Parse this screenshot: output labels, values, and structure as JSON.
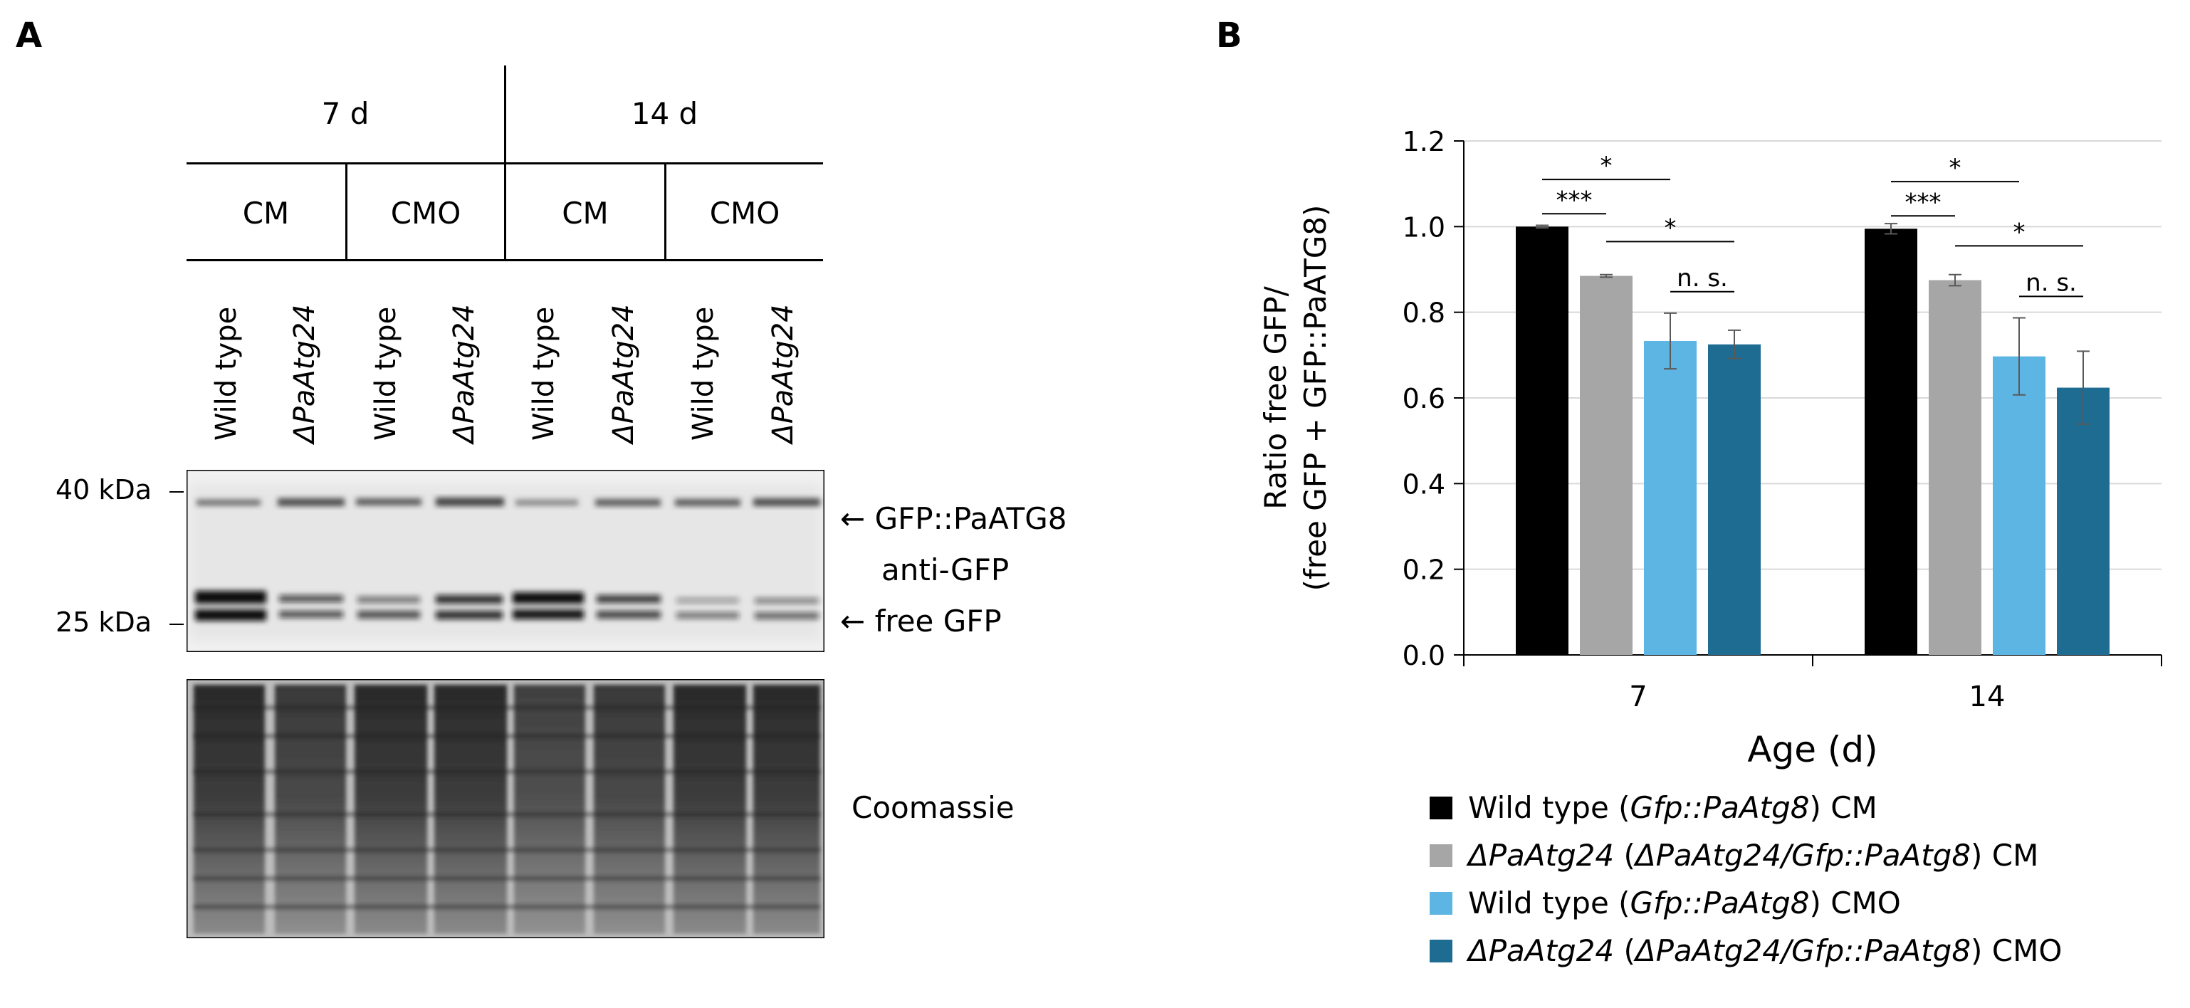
{
  "panel_a": {
    "letter": "A",
    "timepoints": [
      "7 d",
      "14 d"
    ],
    "media": [
      "CM",
      "CMO",
      "CM",
      "CMO"
    ],
    "lanes": [
      {
        "label": "Wild type",
        "italic": false
      },
      {
        "label": "ΔPaAtg24",
        "italic": true
      },
      {
        "label": "Wild type",
        "italic": false
      },
      {
        "label": "ΔPaAtg24",
        "italic": true
      },
      {
        "label": "Wild type",
        "italic": false
      },
      {
        "label": "ΔPaAtg24",
        "italic": true
      },
      {
        "label": "Wild type",
        "italic": false
      },
      {
        "label": "ΔPaAtg24",
        "italic": true
      }
    ],
    "markers": {
      "upper": "40 kDa",
      "lower": "25 kDa"
    },
    "band_labels": {
      "upper": "GFP::PaATG8",
      "antibody": "anti-GFP",
      "lower": "free GFP"
    },
    "arrow": "←",
    "loading_control": "Coomassie"
  },
  "panel_b": {
    "letter": "B",
    "legend": [
      {
        "color": "#000000",
        "parts": [
          {
            "t": "Wild type (",
            "i": false
          },
          {
            "t": "Gfp::PaAtg8",
            "i": true
          },
          {
            "t": ") CM",
            "i": false
          }
        ]
      },
      {
        "color": "#a6a6a6",
        "parts": [
          {
            "t": "ΔPaAtg24",
            "i": true
          },
          {
            "t": " (",
            "i": false
          },
          {
            "t": "ΔPaAtg24/Gfp::PaAtg8",
            "i": true
          },
          {
            "t": ") CM",
            "i": false
          }
        ]
      },
      {
        "color": "#5db5e3",
        "parts": [
          {
            "t": "Wild type (",
            "i": false
          },
          {
            "t": "Gfp::PaAtg8",
            "i": true
          },
          {
            "t": ") CMO",
            "i": false
          }
        ]
      },
      {
        "color": "#1f6c93",
        "parts": [
          {
            "t": "ΔPaAtg24",
            "i": true
          },
          {
            "t": " (",
            "i": false
          },
          {
            "t": "ΔPaAtg24/Gfp::PaAtg8",
            "i": true
          },
          {
            "t": ") CMO",
            "i": false
          }
        ]
      }
    ]
  },
  "chart_data": {
    "type": "bar",
    "categories": [
      "7",
      "14"
    ],
    "xlabel": "Age (d)",
    "ylabel_lines": [
      "Ratio free GFP/",
      "(free GFP + GFP::PaATG8)"
    ],
    "ylim": [
      0,
      1.2
    ],
    "yticks": [
      "0.0",
      "0.2",
      "0.4",
      "0.6",
      "0.8",
      "1.0",
      "1.2"
    ],
    "grid": true,
    "legend_position": "bottom",
    "series": [
      {
        "values": [
          1.0,
          0.995
        ],
        "errors": [
          0.003,
          0.012
        ],
        "color": "#000000"
      },
      {
        "values": [
          0.885,
          0.875
        ],
        "errors": [
          0.003,
          0.013
        ],
        "color": "#a6a6a6"
      },
      {
        "values": [
          0.733,
          0.697
        ],
        "errors": [
          0.065,
          0.09
        ],
        "color": "#5db5e3"
      },
      {
        "values": [
          0.725,
          0.624
        ],
        "errors": [
          0.033,
          0.085
        ],
        "color": "#1f6c93"
      }
    ],
    "significance": [
      {
        "group": 0,
        "from": 0,
        "to": 1,
        "label": "***"
      },
      {
        "group": 0,
        "from": 0,
        "to": 2,
        "label": "*"
      },
      {
        "group": 0,
        "from": 1,
        "to": 3,
        "label": "*"
      },
      {
        "group": 0,
        "from": 2,
        "to": 3,
        "label": "n. s."
      },
      {
        "group": 1,
        "from": 0,
        "to": 1,
        "label": "***"
      },
      {
        "group": 1,
        "from": 0,
        "to": 2,
        "label": "*"
      },
      {
        "group": 1,
        "from": 1,
        "to": 3,
        "label": "*"
      },
      {
        "group": 1,
        "from": 2,
        "to": 3,
        "label": "n. s."
      }
    ]
  }
}
